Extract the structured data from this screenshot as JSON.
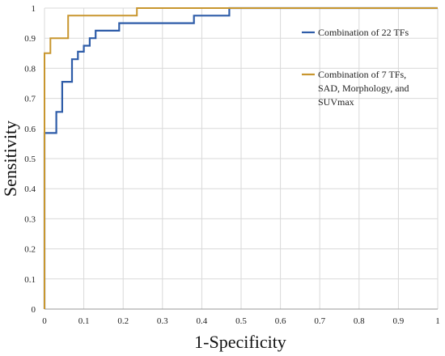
{
  "chart_data": {
    "type": "line",
    "title": "",
    "xlabel": "1-Specificity",
    "ylabel": "Sensitivity",
    "xlim": [
      0,
      1
    ],
    "ylim": [
      0,
      1
    ],
    "xticks": [
      "0",
      "0.1",
      "0.2",
      "0.3",
      "0.4",
      "0.5",
      "0.6",
      "0.7",
      "0.8",
      "0.9",
      "1"
    ],
    "yticks": [
      "0",
      "0.1",
      "0.2",
      "0.3",
      "0.4",
      "0.5",
      "0.6",
      "0.7",
      "0.8",
      "0.9",
      "1"
    ],
    "grid": true,
    "legend_position": "right",
    "series": [
      {
        "name": "Combination of 22 TFs",
        "color": "#2e5ca8",
        "step": true,
        "points": [
          [
            0,
            0
          ],
          [
            0,
            0.585
          ],
          [
            0.03,
            0.585
          ],
          [
            0.03,
            0.655
          ],
          [
            0.045,
            0.655
          ],
          [
            0.045,
            0.755
          ],
          [
            0.07,
            0.755
          ],
          [
            0.07,
            0.83
          ],
          [
            0.085,
            0.83
          ],
          [
            0.085,
            0.855
          ],
          [
            0.1,
            0.855
          ],
          [
            0.1,
            0.875
          ],
          [
            0.115,
            0.875
          ],
          [
            0.115,
            0.9
          ],
          [
            0.13,
            0.9
          ],
          [
            0.13,
            0.925
          ],
          [
            0.19,
            0.925
          ],
          [
            0.19,
            0.95
          ],
          [
            0.38,
            0.95
          ],
          [
            0.38,
            0.975
          ],
          [
            0.47,
            0.975
          ],
          [
            0.47,
            1.0
          ],
          [
            1,
            1.0
          ]
        ]
      },
      {
        "name": "Combination of 7 TFs, SAD, Morphology, and SUVmax",
        "legend_lines": [
          "Combination of 7 TFs,",
          "SAD, Morphology, and",
          "SUVmax"
        ],
        "color": "#c8962e",
        "step": true,
        "points": [
          [
            0,
            0
          ],
          [
            0,
            0.85
          ],
          [
            0.015,
            0.85
          ],
          [
            0.015,
            0.9
          ],
          [
            0.06,
            0.9
          ],
          [
            0.06,
            0.975
          ],
          [
            0.235,
            0.975
          ],
          [
            0.235,
            1.0
          ],
          [
            1,
            1.0
          ]
        ]
      }
    ]
  }
}
